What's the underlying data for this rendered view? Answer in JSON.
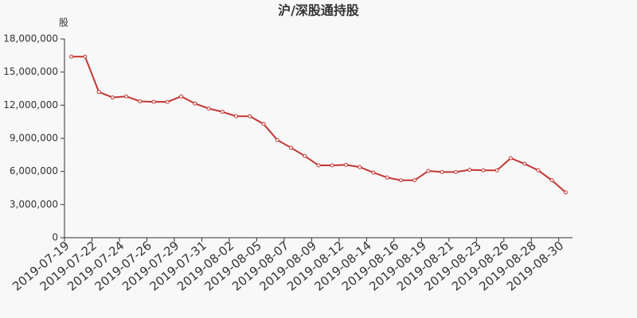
{
  "chart_data": {
    "type": "line",
    "title": "沪/深股通持股",
    "y_label": "股",
    "categories": [
      "2019-07-19",
      null,
      "2019-07-22",
      null,
      "2019-07-24",
      null,
      "2019-07-26",
      null,
      "2019-07-29",
      null,
      "2019-07-31",
      null,
      "2019-08-02",
      null,
      "2019-08-05",
      null,
      "2019-08-07",
      null,
      "2019-08-09",
      null,
      "2019-08-12",
      null,
      "2019-08-14",
      null,
      "2019-08-16",
      null,
      "2019-08-19",
      null,
      "2019-08-21",
      null,
      "2019-08-23",
      null,
      "2019-08-26",
      null,
      "2019-08-28",
      null,
      "2019-08-30"
    ],
    "values": [
      16400000,
      16400000,
      13200000,
      12700000,
      12800000,
      12350000,
      12300000,
      12300000,
      12800000,
      12150000,
      11700000,
      11400000,
      11000000,
      11000000,
      10300000,
      8850000,
      8150000,
      7400000,
      6550000,
      6550000,
      6600000,
      6400000,
      5900000,
      5450000,
      5200000,
      5200000,
      6050000,
      5950000,
      5950000,
      6150000,
      6100000,
      6100000,
      7200000,
      6700000,
      6100000,
      5200000,
      4100000
    ],
    "color": "#c23531",
    "ylim": [
      0,
      18000000
    ],
    "yticks": [
      0,
      {
        "value": 3000000,
        "label": "3,000,000"
      },
      {
        "value": 6000000,
        "label": "6,000,000"
      },
      {
        "value": 9000000,
        "label": "9,000,000"
      },
      {
        "value": 12000000,
        "label": "12,000,000"
      },
      {
        "value": 15000000,
        "label": "15,000,000"
      },
      {
        "value": 18000000,
        "label": "18,000,000"
      }
    ],
    "grid": false
  }
}
